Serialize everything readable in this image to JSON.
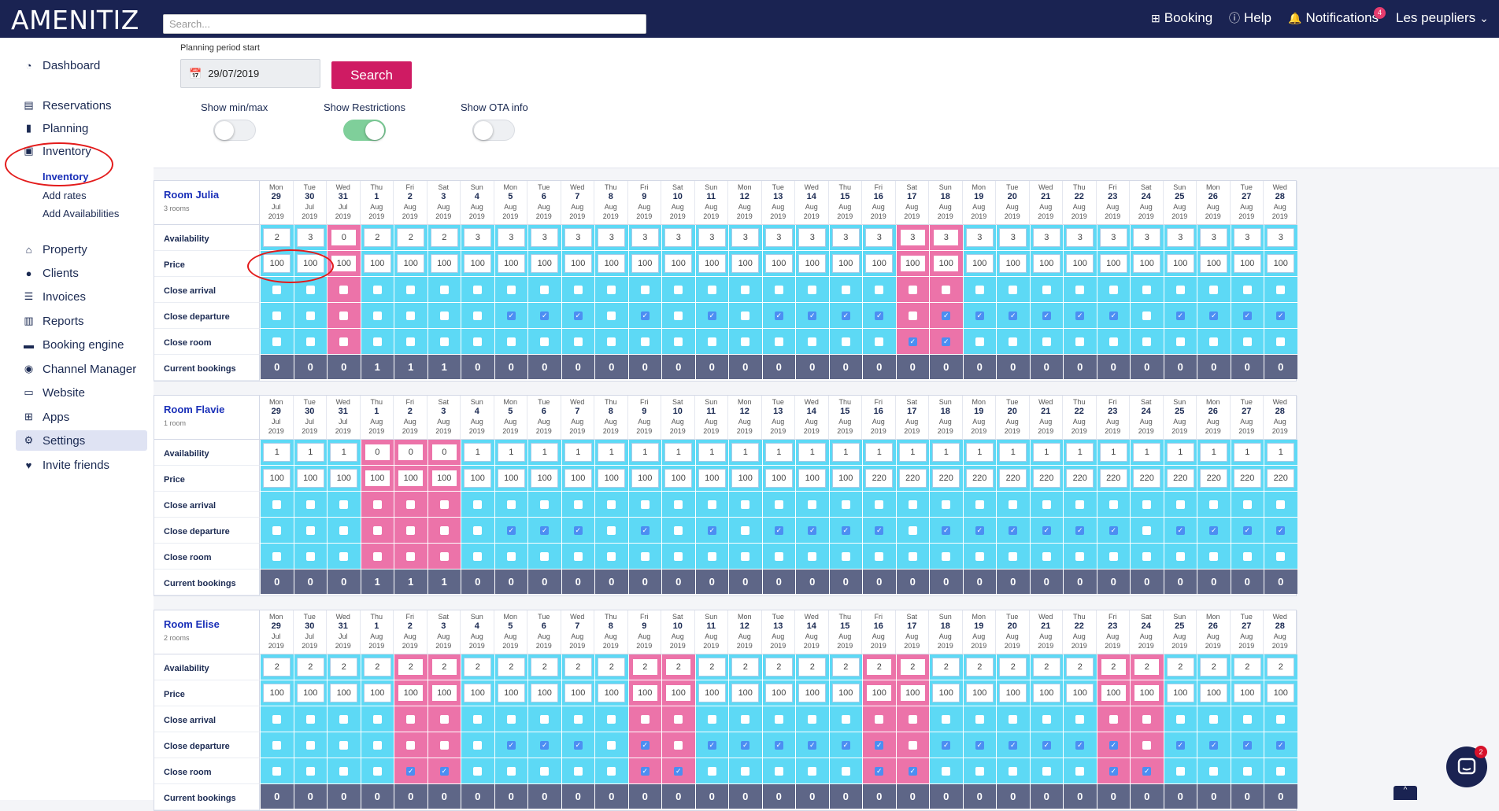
{
  "header": {
    "logo": "AMENITIZ",
    "search_placeholder": "Search...",
    "booking": "Booking",
    "help": "Help",
    "notifications": "Notifications",
    "notifications_count": "4",
    "user": "Les peupliers"
  },
  "sidebar": {
    "dashboard": "Dashboard",
    "reservations": "Reservations",
    "planning": "Planning",
    "inventory": "Inventory",
    "inventory_sub": [
      "Inventory",
      "Add rates",
      "Add Availabilities"
    ],
    "property": "Property",
    "clients": "Clients",
    "invoices": "Invoices",
    "reports": "Reports",
    "booking_engine": "Booking engine",
    "channel_manager": "Channel Manager",
    "website": "Website",
    "apps": "Apps",
    "settings": "Settings",
    "invite": "Invite friends"
  },
  "filters": {
    "period_label": "Planning period start",
    "date": "29/07/2019",
    "search_label": "Search",
    "show_minmax": "Show min/max",
    "show_minmax_on": false,
    "show_restrictions": "Show Restrictions",
    "show_restrictions_on": true,
    "show_ota": "Show OTA info",
    "show_ota_on": false
  },
  "row_labels": [
    "Availability",
    "Price",
    "Close arrival",
    "Close departure",
    "Close room",
    "Current bookings"
  ],
  "days": [
    {
      "wd": "Mon",
      "d": "29",
      "m": "Jul",
      "y": "2019"
    },
    {
      "wd": "Tue",
      "d": "30",
      "m": "Jul",
      "y": "2019"
    },
    {
      "wd": "Wed",
      "d": "31",
      "m": "Jul",
      "y": "2019"
    },
    {
      "wd": "Thu",
      "d": "1",
      "m": "Aug",
      "y": "2019"
    },
    {
      "wd": "Fri",
      "d": "2",
      "m": "Aug",
      "y": "2019"
    },
    {
      "wd": "Sat",
      "d": "3",
      "m": "Aug",
      "y": "2019"
    },
    {
      "wd": "Sun",
      "d": "4",
      "m": "Aug",
      "y": "2019"
    },
    {
      "wd": "Mon",
      "d": "5",
      "m": "Aug",
      "y": "2019"
    },
    {
      "wd": "Tue",
      "d": "6",
      "m": "Aug",
      "y": "2019"
    },
    {
      "wd": "Wed",
      "d": "7",
      "m": "Aug",
      "y": "2019"
    },
    {
      "wd": "Thu",
      "d": "8",
      "m": "Aug",
      "y": "2019"
    },
    {
      "wd": "Fri",
      "d": "9",
      "m": "Aug",
      "y": "2019"
    },
    {
      "wd": "Sat",
      "d": "10",
      "m": "Aug",
      "y": "2019"
    },
    {
      "wd": "Sun",
      "d": "11",
      "m": "Aug",
      "y": "2019"
    },
    {
      "wd": "Mon",
      "d": "12",
      "m": "Aug",
      "y": "2019"
    },
    {
      "wd": "Tue",
      "d": "13",
      "m": "Aug",
      "y": "2019"
    },
    {
      "wd": "Wed",
      "d": "14",
      "m": "Aug",
      "y": "2019"
    },
    {
      "wd": "Thu",
      "d": "15",
      "m": "Aug",
      "y": "2019"
    },
    {
      "wd": "Fri",
      "d": "16",
      "m": "Aug",
      "y": "2019"
    },
    {
      "wd": "Sat",
      "d": "17",
      "m": "Aug",
      "y": "2019"
    },
    {
      "wd": "Sun",
      "d": "18",
      "m": "Aug",
      "y": "2019"
    },
    {
      "wd": "Mon",
      "d": "19",
      "m": "Aug",
      "y": "2019"
    },
    {
      "wd": "Tue",
      "d": "20",
      "m": "Aug",
      "y": "2019"
    },
    {
      "wd": "Wed",
      "d": "21",
      "m": "Aug",
      "y": "2019"
    },
    {
      "wd": "Thu",
      "d": "22",
      "m": "Aug",
      "y": "2019"
    },
    {
      "wd": "Fri",
      "d": "23",
      "m": "Aug",
      "y": "2019"
    },
    {
      "wd": "Sat",
      "d": "24",
      "m": "Aug",
      "y": "2019"
    },
    {
      "wd": "Sun",
      "d": "25",
      "m": "Aug",
      "y": "2019"
    },
    {
      "wd": "Mon",
      "d": "26",
      "m": "Aug",
      "y": "2019"
    },
    {
      "wd": "Tue",
      "d": "27",
      "m": "Aug",
      "y": "2019"
    },
    {
      "wd": "Wed",
      "d": "28",
      "m": "Aug",
      "y": "2019"
    }
  ],
  "rooms": [
    {
      "name": "Room Julia",
      "sub": "3 rooms",
      "avail": [
        "2",
        "3",
        "0",
        "2",
        "2",
        "2",
        "3",
        "3",
        "3",
        "3",
        "3",
        "3",
        "3",
        "3",
        "3",
        "3",
        "3",
        "3",
        "3",
        "3",
        "3",
        "3",
        "3",
        "3",
        "3",
        "3",
        "3",
        "3",
        "3",
        "3",
        "3"
      ],
      "price": [
        "100",
        "100",
        "100",
        "100",
        "100",
        "100",
        "100",
        "100",
        "100",
        "100",
        "100",
        "100",
        "100",
        "100",
        "100",
        "100",
        "100",
        "100",
        "100",
        "100",
        "100",
        "100",
        "100",
        "100",
        "100",
        "100",
        "100",
        "100",
        "100",
        "100",
        "100"
      ],
      "pink": [
        2,
        19,
        20
      ],
      "close_arrival": [],
      "close_departure": [
        7,
        8,
        9,
        11,
        13,
        15,
        16,
        17,
        18,
        20,
        21,
        22,
        23,
        24,
        25,
        27,
        28,
        29,
        30
      ],
      "close_room": [
        19,
        20
      ],
      "bookings": [
        "0",
        "0",
        "0",
        "1",
        "1",
        "1",
        "0",
        "0",
        "0",
        "0",
        "0",
        "0",
        "0",
        "0",
        "0",
        "0",
        "0",
        "0",
        "0",
        "0",
        "0",
        "0",
        "0",
        "0",
        "0",
        "0",
        "0",
        "0",
        "0",
        "0",
        "0"
      ]
    },
    {
      "name": "Room Flavie",
      "sub": "1 room",
      "avail": [
        "1",
        "1",
        "1",
        "0",
        "0",
        "0",
        "1",
        "1",
        "1",
        "1",
        "1",
        "1",
        "1",
        "1",
        "1",
        "1",
        "1",
        "1",
        "1",
        "1",
        "1",
        "1",
        "1",
        "1",
        "1",
        "1",
        "1",
        "1",
        "1",
        "1",
        "1"
      ],
      "price": [
        "100",
        "100",
        "100",
        "100",
        "100",
        "100",
        "100",
        "100",
        "100",
        "100",
        "100",
        "100",
        "100",
        "100",
        "100",
        "100",
        "100",
        "100",
        "220",
        "220",
        "220",
        "220",
        "220",
        "220",
        "220",
        "220",
        "220",
        "220",
        "220",
        "220",
        "220"
      ],
      "pink": [
        3,
        4,
        5
      ],
      "close_arrival": [],
      "close_departure": [
        7,
        8,
        9,
        11,
        13,
        15,
        16,
        17,
        18,
        20,
        21,
        22,
        23,
        24,
        25,
        27,
        28,
        29,
        30
      ],
      "close_room": [],
      "bookings": [
        "0",
        "0",
        "0",
        "1",
        "1",
        "1",
        "0",
        "0",
        "0",
        "0",
        "0",
        "0",
        "0",
        "0",
        "0",
        "0",
        "0",
        "0",
        "0",
        "0",
        "0",
        "0",
        "0",
        "0",
        "0",
        "0",
        "0",
        "0",
        "0",
        "0",
        "0"
      ]
    },
    {
      "name": "Room Elise",
      "sub": "2 rooms",
      "avail": [
        "2",
        "2",
        "2",
        "2",
        "2",
        "2",
        "2",
        "2",
        "2",
        "2",
        "2",
        "2",
        "2",
        "2",
        "2",
        "2",
        "2",
        "2",
        "2",
        "2",
        "2",
        "2",
        "2",
        "2",
        "2",
        "2",
        "2",
        "2",
        "2",
        "2",
        "2"
      ],
      "price": [
        "100",
        "100",
        "100",
        "100",
        "100",
        "100",
        "100",
        "100",
        "100",
        "100",
        "100",
        "100",
        "100",
        "100",
        "100",
        "100",
        "100",
        "100",
        "100",
        "100",
        "100",
        "100",
        "100",
        "100",
        "100",
        "100",
        "100",
        "100",
        "100",
        "100",
        "100"
      ],
      "pink": [
        4,
        5,
        11,
        12,
        18,
        19,
        25,
        26
      ],
      "close_arrival": [],
      "close_departure": [
        7,
        8,
        9,
        11,
        13,
        14,
        15,
        16,
        17,
        18,
        20,
        21,
        22,
        23,
        24,
        25,
        27,
        28,
        29,
        30
      ],
      "close_room": [
        4,
        5,
        11,
        12,
        18,
        19,
        25,
        26
      ],
      "bookings": [
        "0",
        "0",
        "0",
        "0",
        "0",
        "0",
        "0",
        "0",
        "0",
        "0",
        "0",
        "0",
        "0",
        "0",
        "0",
        "0",
        "0",
        "0",
        "0",
        "0",
        "0",
        "0",
        "0",
        "0",
        "0",
        "0",
        "0",
        "0",
        "0",
        "0",
        "0"
      ]
    }
  ],
  "chat_count": "2",
  "colors": {
    "navy": "#1a2352",
    "accent": "#cf1b63",
    "cyan": "#5dd9f5",
    "pink": "#ec73a9",
    "annotation": "#e31b1b"
  }
}
